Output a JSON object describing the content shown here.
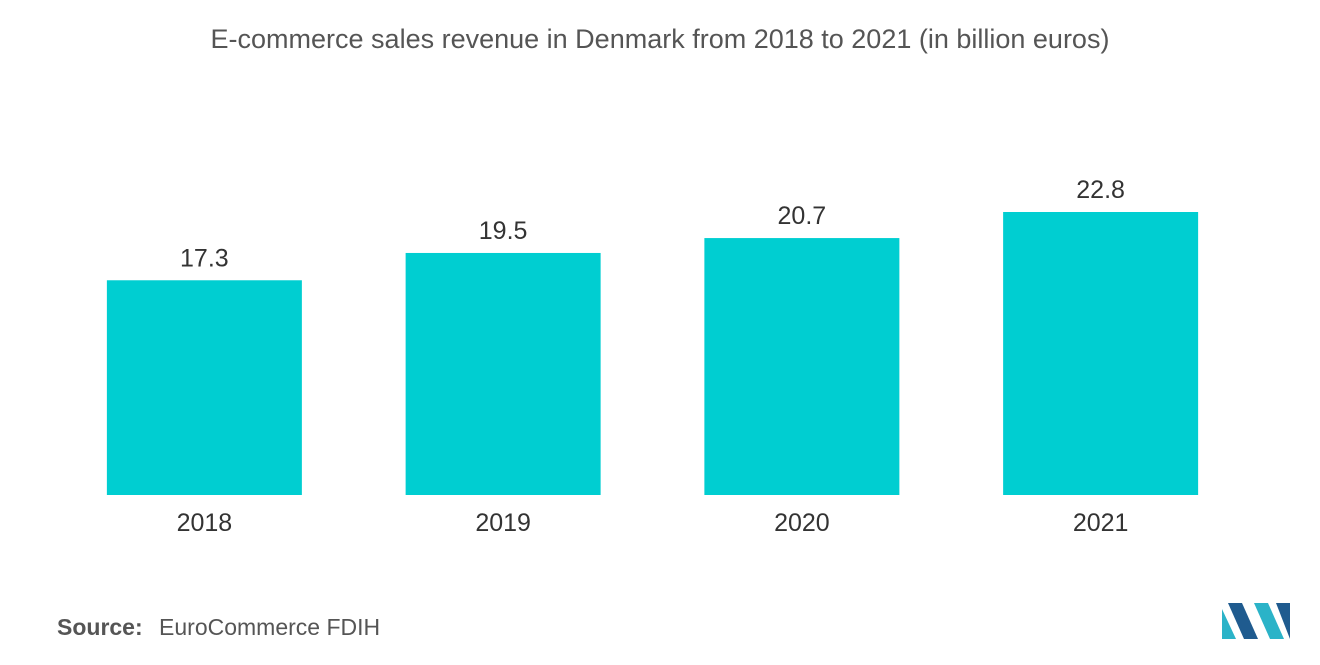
{
  "chart_data": {
    "type": "bar",
    "title": "E-commerce sales revenue in Denmark from 2018 to 2021 (in billion euros)",
    "categories": [
      "2018",
      "2019",
      "2020",
      "2021"
    ],
    "values": [
      17.3,
      19.5,
      20.7,
      22.8
    ],
    "value_labels": [
      "17.3",
      "19.5",
      "20.7",
      "22.8"
    ],
    "xlabel": "",
    "ylabel": "",
    "ylim": [
      0,
      26
    ],
    "grid": false,
    "legend": "none",
    "bar_color": "#00CED1"
  },
  "source": {
    "label": "Source:",
    "text": "EuroCommerce FDIH"
  },
  "colors": {
    "bar": "#00CED1",
    "text": "#333333",
    "logo_dark": "#1f5b8f",
    "logo_light": "#2bb3c8"
  }
}
